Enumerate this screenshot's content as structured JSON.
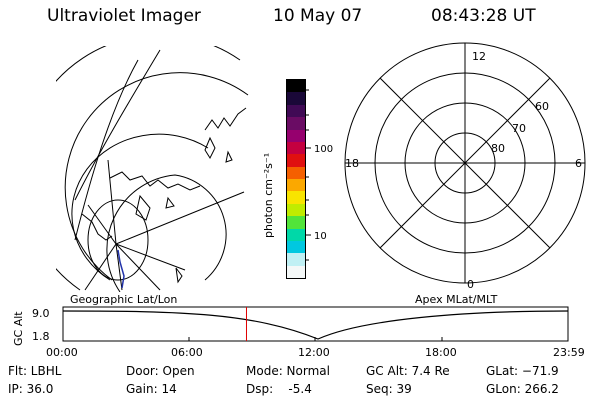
{
  "header": {
    "instrument": "Ultraviolet Imager",
    "date": "10 May 07",
    "time": "08:43:28 UT"
  },
  "colorbar": {
    "label": "photon cm⁻²s⁻¹",
    "ticks": [
      "100",
      "10"
    ],
    "colors": [
      "#000000",
      "#1a0838",
      "#400a55",
      "#6a0c64",
      "#96006e",
      "#c40040",
      "#e01010",
      "#f56000",
      "#fba800",
      "#f8e400",
      "#c0ec00",
      "#52e43a",
      "#00d8a8",
      "#00c8e0",
      "#c0f0f4",
      "#f4f8f8"
    ]
  },
  "geo_map": {
    "caption": "Geographic Lat/Lon"
  },
  "polar_plot": {
    "caption": "Apex MLat/MLT",
    "mlt_labels": {
      "top": "12",
      "left": "18",
      "right": "6",
      "bottom": "0"
    },
    "lat_labels": [
      "60",
      "70",
      "80"
    ]
  },
  "altitude_strip": {
    "axis_label": "GC Alt",
    "y_ticks": [
      "9.0",
      "1.8"
    ],
    "x_ticks": [
      "00:00",
      "06:00",
      "12:00",
      "18:00",
      "23:59"
    ],
    "current_marker_hour": 8.72,
    "marker_color": "#e00000"
  },
  "status": {
    "filter": "Flt: LBHL",
    "ip": "IP: 36.0",
    "door": "Door: Open",
    "gain": "Gain: 14",
    "mode": "Mode: Normal",
    "dsp": "Dsp:    -5.4",
    "gc_alt": "GC Alt: 7.4 Re",
    "seq": "Seq: 39",
    "glat": "GLat: −71.9",
    "glon": "GLon: 266.2"
  }
}
